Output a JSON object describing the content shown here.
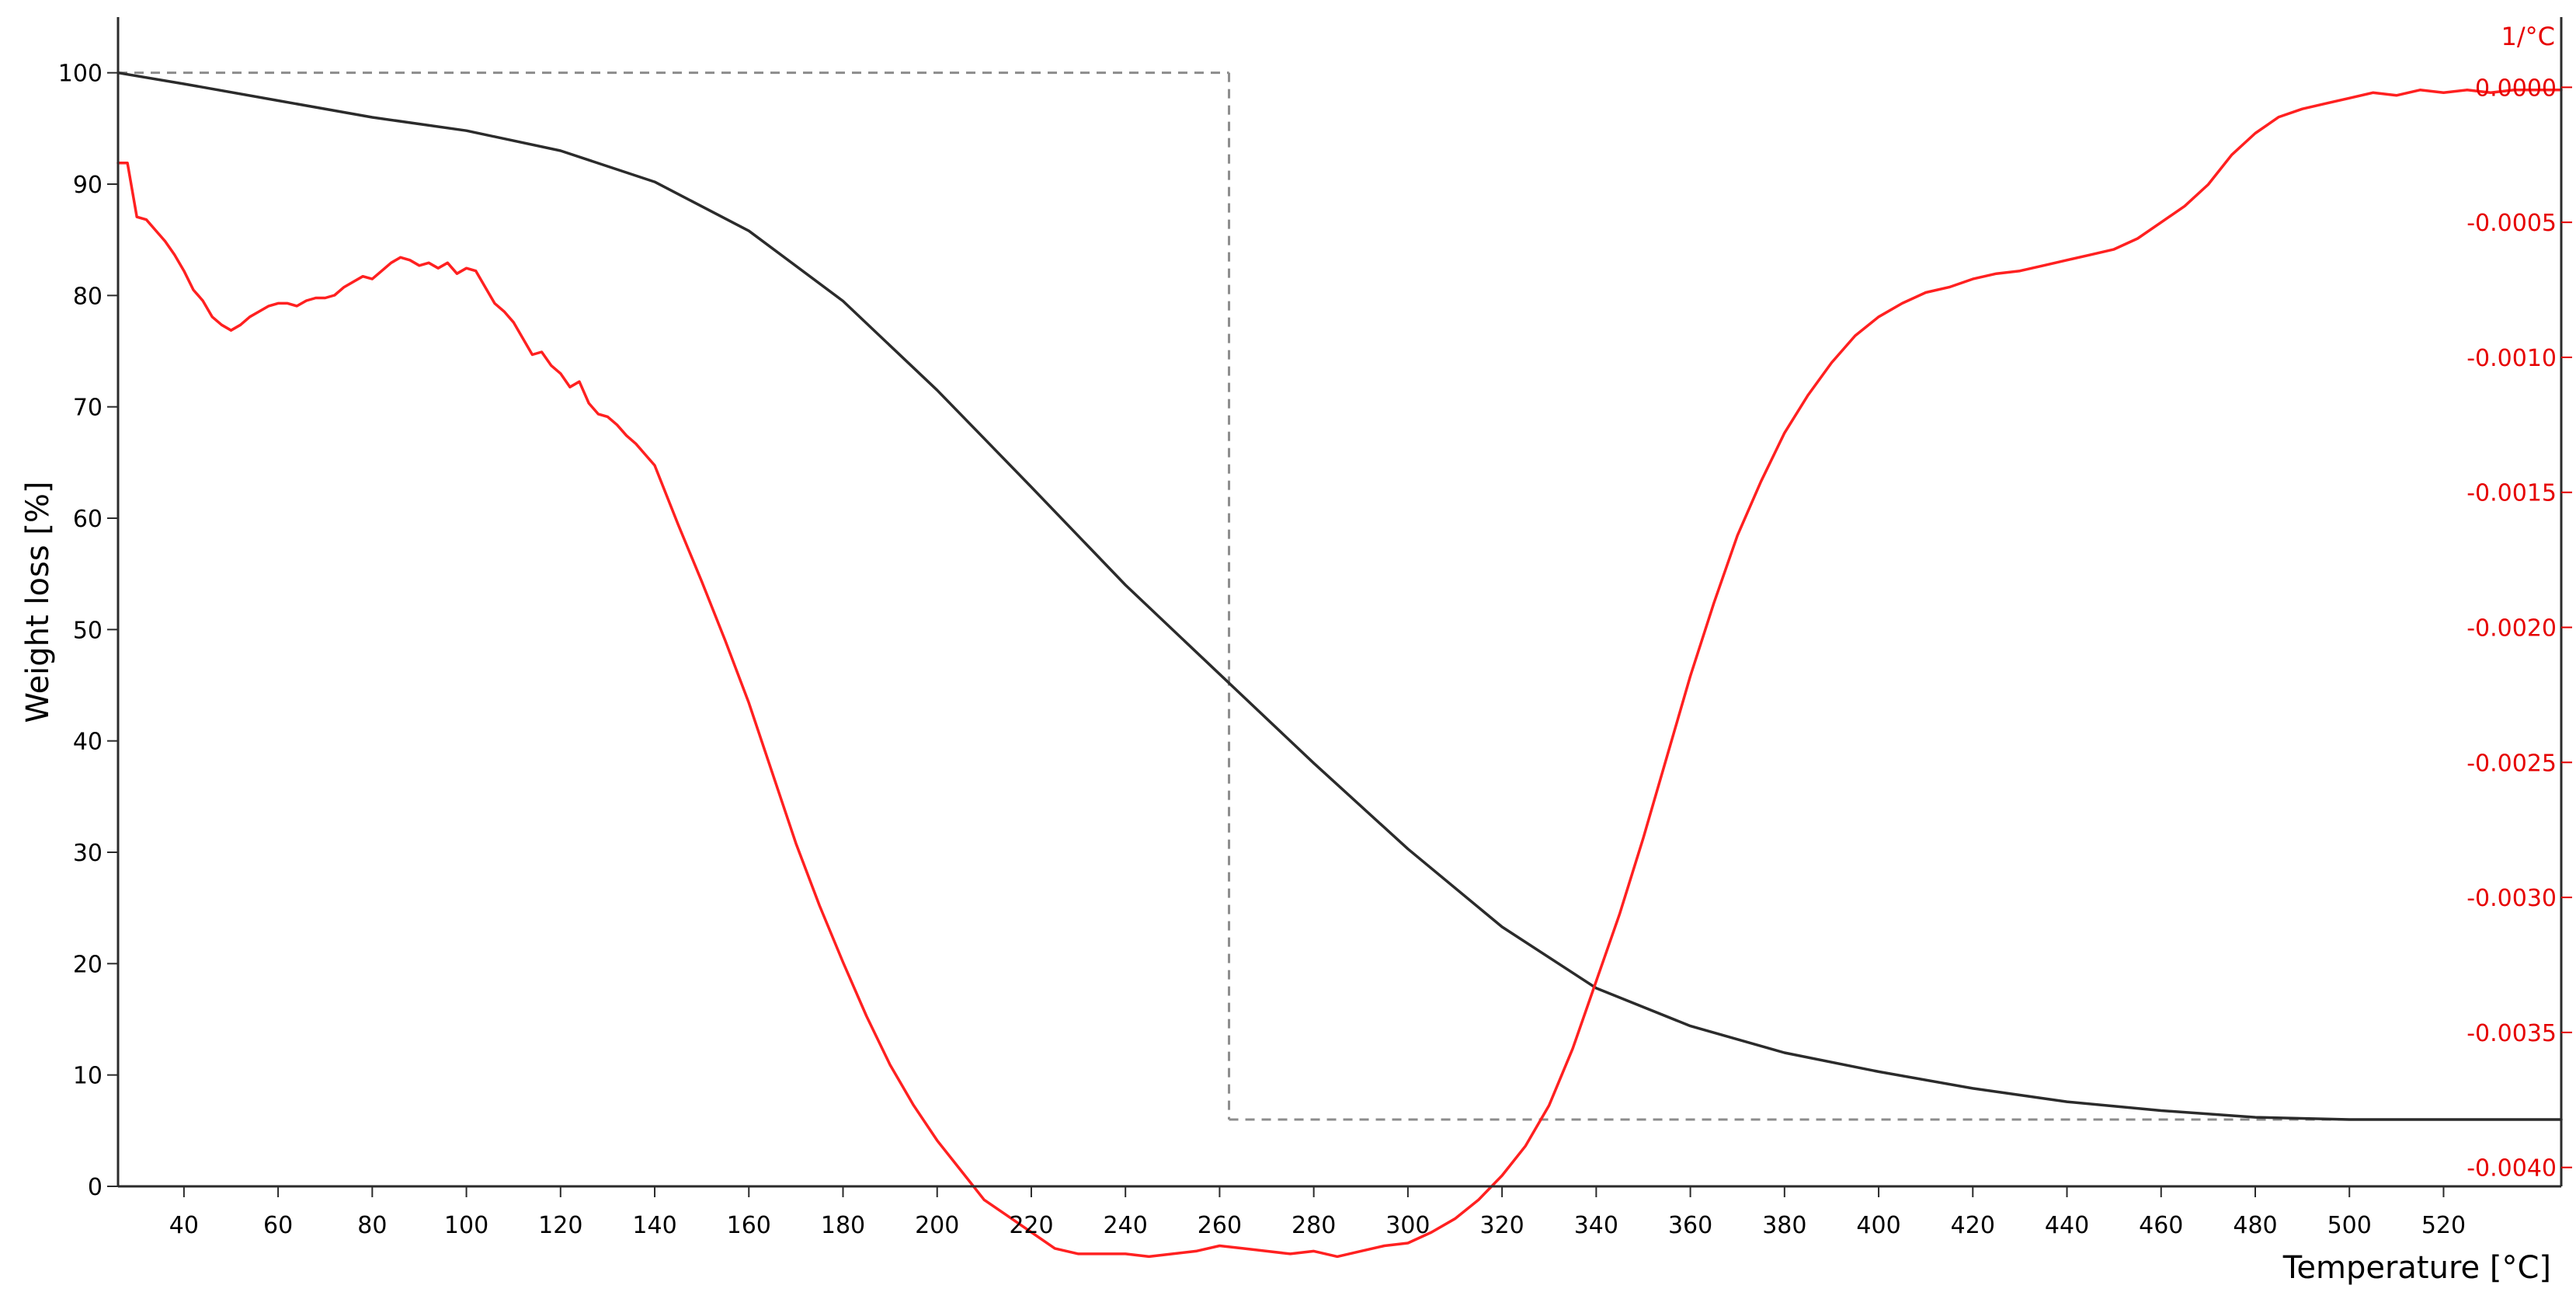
{
  "chart_data": {
    "type": "line",
    "xlabel": "Temperature [°C]",
    "ylabel": "Weight loss [%]",
    "y2label": "1/°C",
    "xlim": [
      26,
      545
    ],
    "ylim": [
      0,
      105
    ],
    "y2lim": [
      -0.00407,
      0.00026
    ],
    "x_ticks": [
      40,
      60,
      80,
      100,
      120,
      140,
      160,
      180,
      200,
      220,
      240,
      260,
      280,
      300,
      320,
      340,
      360,
      380,
      400,
      420,
      440,
      460,
      480,
      500,
      520
    ],
    "y_ticks": [
      0,
      10,
      20,
      30,
      40,
      50,
      60,
      70,
      80,
      90,
      100
    ],
    "y2_ticks": [
      "0.0000",
      "-0.0005",
      "-0.0010",
      "-0.0015",
      "-0.0020",
      "-0.0025",
      "-0.0030",
      "-0.0035",
      "-0.0040"
    ],
    "grid": false,
    "colors": {
      "weight": "#2b2b2b",
      "derivative": "#ff2020",
      "right_axis": "#e60000",
      "guides": "#8c8c8c"
    },
    "series": [
      {
        "axis": "left",
        "color": "#2b2b2b",
        "x": [
          26,
          40,
          60,
          80,
          100,
          120,
          140,
          160,
          180,
          200,
          220,
          240,
          260,
          280,
          300,
          320,
          340,
          360,
          380,
          400,
          420,
          440,
          460,
          480,
          500,
          520,
          545
        ],
        "values": [
          100,
          99.0,
          97.5,
          96.0,
          94.8,
          93.0,
          90.2,
          85.8,
          79.5,
          71.5,
          62.8,
          54.0,
          46.0,
          38.0,
          30.3,
          23.3,
          17.8,
          14.4,
          12.0,
          10.3,
          8.8,
          7.6,
          6.8,
          6.2,
          6.0,
          6.0,
          6.0
        ]
      },
      {
        "axis": "right",
        "color": "#ff2020",
        "x": [
          26,
          28,
          30,
          32,
          34,
          36,
          38,
          40,
          42,
          44,
          46,
          48,
          50,
          52,
          54,
          56,
          58,
          60,
          62,
          64,
          66,
          68,
          70,
          72,
          74,
          76,
          78,
          80,
          82,
          84,
          86,
          88,
          90,
          92,
          94,
          96,
          98,
          100,
          102,
          104,
          106,
          108,
          110,
          112,
          114,
          116,
          118,
          120,
          122,
          124,
          126,
          128,
          130,
          132,
          134,
          136,
          138,
          140,
          145,
          150,
          155,
          160,
          165,
          170,
          175,
          180,
          185,
          190,
          195,
          200,
          205,
          210,
          215,
          220,
          225,
          230,
          235,
          240,
          245,
          250,
          255,
          260,
          265,
          270,
          275,
          280,
          285,
          290,
          295,
          300,
          305,
          310,
          315,
          320,
          325,
          330,
          335,
          340,
          345,
          350,
          355,
          360,
          365,
          370,
          375,
          380,
          385,
          390,
          395,
          400,
          405,
          410,
          415,
          420,
          425,
          430,
          435,
          440,
          445,
          450,
          455,
          460,
          465,
          470,
          475,
          480,
          485,
          490,
          495,
          500,
          505,
          510,
          515,
          520,
          525,
          530,
          535,
          545
        ],
        "values": [
          -0.00028,
          -0.00028,
          -0.00048,
          -0.00049,
          -0.00053,
          -0.00057,
          -0.00062,
          -0.00068,
          -0.00075,
          -0.00079,
          -0.00085,
          -0.00088,
          -0.0009,
          -0.00088,
          -0.00085,
          -0.00083,
          -0.00081,
          -0.0008,
          -0.0008,
          -0.00081,
          -0.00079,
          -0.00078,
          -0.00078,
          -0.00077,
          -0.00074,
          -0.00072,
          -0.0007,
          -0.00071,
          -0.00068,
          -0.00065,
          -0.00063,
          -0.00064,
          -0.00066,
          -0.00065,
          -0.00067,
          -0.00065,
          -0.00069,
          -0.00067,
          -0.00068,
          -0.00074,
          -0.0008,
          -0.00083,
          -0.00087,
          -0.00093,
          -0.00099,
          -0.00098,
          -0.00103,
          -0.00106,
          -0.00111,
          -0.00109,
          -0.00117,
          -0.00121,
          -0.00122,
          -0.00125,
          -0.00129,
          -0.00132,
          -0.00136,
          -0.0014,
          -0.00162,
          -0.00183,
          -0.00205,
          -0.00228,
          -0.00254,
          -0.0028,
          -0.00303,
          -0.00324,
          -0.00344,
          -0.00362,
          -0.00377,
          -0.0039,
          -0.00401,
          -0.00412,
          -0.00418,
          -0.00424,
          -0.0043,
          -0.00432,
          -0.00432,
          -0.00432,
          -0.00433,
          -0.00432,
          -0.00431,
          -0.00429,
          -0.0043,
          -0.00431,
          -0.00432,
          -0.00431,
          -0.00433,
          -0.00431,
          -0.00429,
          -0.00428,
          -0.00424,
          -0.00419,
          -0.00412,
          -0.00403,
          -0.00392,
          -0.00377,
          -0.00356,
          -0.00331,
          -0.00306,
          -0.00278,
          -0.00248,
          -0.00218,
          -0.00191,
          -0.00166,
          -0.00146,
          -0.00128,
          -0.00114,
          -0.00102,
          -0.00092,
          -0.00085,
          -0.0008,
          -0.00076,
          -0.00074,
          -0.00071,
          -0.00069,
          -0.00068,
          -0.00066,
          -0.00064,
          -0.00062,
          -0.0006,
          -0.00056,
          -0.0005,
          -0.00044,
          -0.00036,
          -0.00025,
          -0.00017,
          -0.00011,
          -8e-05,
          -6e-05,
          -4e-05,
          -2e-05,
          -3e-05,
          -1e-05,
          -2e-05,
          -1e-05,
          -2e-05,
          -1e-05,
          -1e-05
        ]
      }
    ],
    "annotations": {
      "guide_line_1": {
        "x": [
          26,
          262
        ],
        "y": [
          100,
          100
        ]
      },
      "guide_line_2": {
        "x": [
          262,
          262
        ],
        "y": [
          100,
          6.0
        ]
      },
      "guide_line_3": {
        "x": [
          262,
          545
        ],
        "y": [
          6.0,
          6.0
        ]
      }
    }
  }
}
